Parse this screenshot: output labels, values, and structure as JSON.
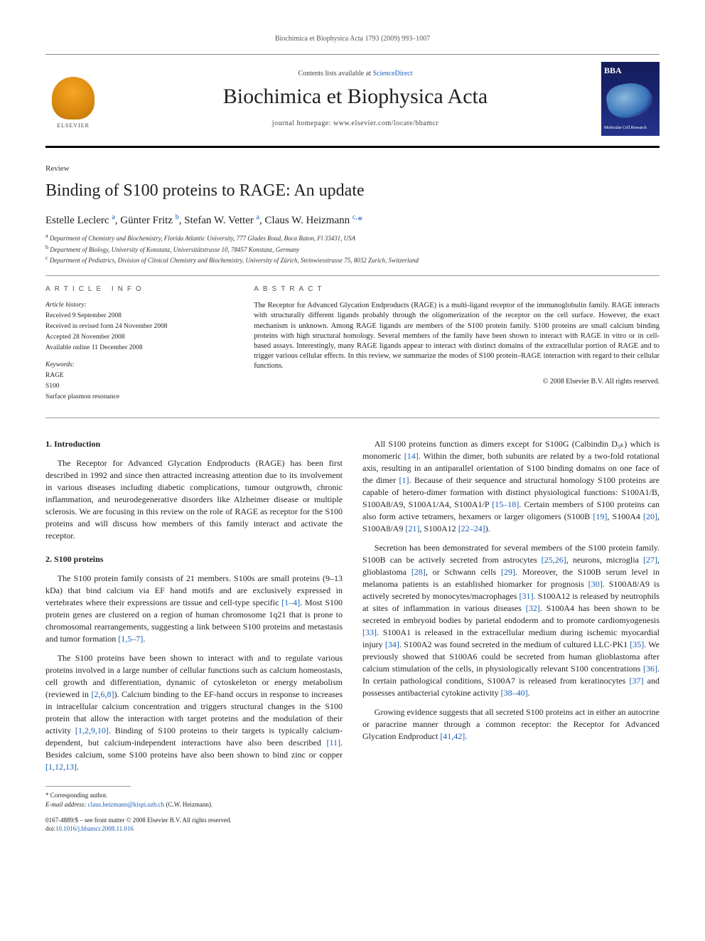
{
  "running_head": "Biochimica et Biophysica Acta 1793 (2009) 993–1007",
  "masthead": {
    "contents_prefix": "Contents lists available at ",
    "contents_link": "ScienceDirect",
    "journal_title": "Biochimica et Biophysica Acta",
    "homepage_prefix": "journal homepage: ",
    "homepage_url": "www.elsevier.com/locate/bbamcr",
    "publisher_label": "ELSEVIER",
    "cover_abbrev": "BBA",
    "cover_subtitle": "Molecular Cell Research"
  },
  "article": {
    "type": "Review",
    "title": "Binding of S100 proteins to RAGE: An update",
    "authors_html": "Estelle Leclerc <sup>a</sup>, Günter Fritz <sup>b</sup>, Stefan W. Vetter <sup>a</sup>, Claus W. Heizmann <sup>c,</sup><span class='corr'>*</span>",
    "affiliations": [
      "Department of Chemistry and Biochemistry, Florida Atlantic University, 777 Glades Road, Boca Raton, Fl 33431, USA",
      "Department of Biology, University of Konstanz, Universitätstrasse 10, 78457 Konstanz, Germany",
      "Department of Pediatrics, Division of Clinical Chemistry and Biochemistry, University of Zürich, Steinwiesstrasse 75, 8032 Zurich, Switzerland"
    ],
    "aff_markers": [
      "a",
      "b",
      "c"
    ]
  },
  "info": {
    "heading": "ARTICLE INFO",
    "history_label": "Article history:",
    "history": [
      "Received 9 September 2008",
      "Received in revised form 24 November 2008",
      "Accepted 28 November 2008",
      "Available online 11 December 2008"
    ],
    "keywords_label": "Keywords:",
    "keywords": [
      "RAGE",
      "S100",
      "Surface plasmon resonance"
    ]
  },
  "abstract": {
    "heading": "ABSTRACT",
    "text": "The Receptor for Advanced Glycation Endproducts (RAGE) is a multi-ligand receptor of the immunoglobulin family. RAGE interacts with structurally different ligands probably through the oligomerization of the receptor on the cell surface. However, the exact mechanism is unknown. Among RAGE ligands are members of the S100 protein family. S100 proteins are small calcium binding proteins with high structural homology. Several members of the family have been shown to interact with RAGE in vitro or in cell-based assays. Interestingly, many RAGE ligands appear to interact with distinct domains of the extracellular portion of RAGE and to trigger various cellular effects. In this review, we summarize the modes of S100 protein–RAGE interaction with regard to their cellular functions.",
    "copyright": "© 2008 Elsevier B.V. All rights reserved."
  },
  "body": {
    "h_intro": "1. Introduction",
    "p_intro": "The Receptor for Advanced Glycation Endproducts (RAGE) has been first described in 1992 and since then attracted increasing attention due to its involvement in various diseases including diabetic complications, tumour outgrowth, chronic inflammation, and neurodegenerative disorders like Alzheimer disease or multiple sclerosis. We are focusing in this review on the role of RAGE as receptor for the S100 proteins and will discuss how members of this family interact and activate the receptor.",
    "h_s100": "2. S100 proteins",
    "p_s100_1a": "The S100 protein family consists of 21 members. S100s are small proteins (9–13 kDa) that bind calcium via EF hand motifs and are exclusively expressed in vertebrates where their expressions are tissue and cell-type specific ",
    "p_s100_1_ref1": "[1–4]",
    "p_s100_1b": ". Most S100 protein genes are clustered on a region of human chromosome 1q21 that is prone to chromosomal rearrangements, suggesting a link between S100 proteins and metastasis and tumor formation ",
    "p_s100_1_ref2": "[1,5–7]",
    "p_s100_1c": ".",
    "p_s100_2a": "The S100 proteins have been shown to interact with and to regulate various proteins involved in a large number of cellular functions such as calcium homeostasis, cell growth and differentiation, dynamic of cytoskeleton or energy metabolism (reviewed in ",
    "p_s100_2_ref1": "[2,6,8]",
    "p_s100_2b": "). Calcium binding to the EF-hand occurs in response to increases in intracellular calcium concentration and triggers structural changes in the S100 protein that allow the interaction with target proteins and the modulation of their activity ",
    "p_s100_2_ref2": "[1,2,9,10]",
    "p_s100_2c": ". Binding of S100 proteins to their targets is typically calcium-dependent, but calcium-independent interactions have also been described ",
    "p_s100_2_ref3": "[11]",
    "p_s100_2d": ". Besides calcium, some S100 proteins have also been shown to bind zinc or copper ",
    "p_s100_2_ref4": "[1,12,13]",
    "p_s100_2e": ".",
    "p_dimer_a": "All S100 proteins function as dimers except for S100G (Calbindin D₉ₖ) which is monomeric ",
    "p_dimer_ref1": "[14]",
    "p_dimer_b": ". Within the dimer, both subunits are related by a two-fold rotational axis, resulting in an antiparallel orientation of S100 binding domains on one face of the dimer ",
    "p_dimer_ref2": "[1]",
    "p_dimer_c": ". Because of their sequence and structural homology S100 proteins are capable of hetero-dimer formation with distinct physiological functions: S100A1/B, S100A8/A9, S100A1/A4, S100A1/P ",
    "p_dimer_ref3": "[15–18]",
    "p_dimer_d": ". Certain members of S100 proteins can also form active tetramers, hexamers or larger oligomers (S100B ",
    "p_dimer_ref4": "[19]",
    "p_dimer_e": ", S100A4 ",
    "p_dimer_ref5": "[20]",
    "p_dimer_f": ", S100A8/A9 ",
    "p_dimer_ref6": "[21]",
    "p_dimer_g": ", S100A12 ",
    "p_dimer_ref7": "[22–24]",
    "p_dimer_h": ").",
    "p_secr_a": "Secretion has been demonstrated for several members of the S100 protein family. S100B can be actively secreted from astrocytes ",
    "p_secr_ref1": "[25,26]",
    "p_secr_b": ", neurons, microglia ",
    "p_secr_ref2": "[27]",
    "p_secr_c": ", glioblastoma ",
    "p_secr_ref3": "[28]",
    "p_secr_d": ", or Schwann cells ",
    "p_secr_ref4": "[29]",
    "p_secr_e": ". Moreover, the S100B serum level in melanoma patients is an established biomarker for prognosis ",
    "p_secr_ref5": "[30]",
    "p_secr_f": ". S100A8/A9 is actively secreted by monocytes/macrophages ",
    "p_secr_ref6": "[31]",
    "p_secr_g": ". S100A12 is released by neutrophils at sites of inflammation in various diseases ",
    "p_secr_ref7": "[32]",
    "p_secr_h": ". S100A4 has been shown to be secreted in embryoid bodies by parietal endoderm and to promote cardiomyogenesis ",
    "p_secr_ref8": "[33]",
    "p_secr_i": ". S100A1 is released in the extracellular medium during ischemic myocardial injury ",
    "p_secr_ref9": "[34]",
    "p_secr_j": ". S100A2 was found secreted in the medium of cultured LLC-PK1 ",
    "p_secr_ref10": "[35]",
    "p_secr_k": ". We previously showed that S100A6 could be secreted from human glioblastoma after calcium stimulation of the cells, in physiologically relevant S100 concentrations ",
    "p_secr_ref11": "[36]",
    "p_secr_l": ". In certain pathological conditions, S100A7 is released from keratinocytes ",
    "p_secr_ref12": "[37]",
    "p_secr_m": " and possesses antibacterial cytokine activity ",
    "p_secr_ref13": "[38–40]",
    "p_secr_n": ".",
    "p_grow_a": "Growing evidence suggests that all secreted S100 proteins act in either an autocrine or paracrine manner through a common receptor: the Receptor for Advanced Glycation Endproduct ",
    "p_grow_ref1": "[41,42]",
    "p_grow_b": "."
  },
  "footnotes": {
    "corr_label": "* Corresponding author.",
    "email_label": "E-mail address:",
    "email": "claus.heizmann@kispi.uzh.ch",
    "email_person": "(C.W. Heizmann)."
  },
  "footer": {
    "issn_line": "0167-4889/$ – see front matter © 2008 Elsevier B.V. All rights reserved.",
    "doi_prefix": "doi:",
    "doi": "10.1016/j.bbamcr.2008.11.016"
  },
  "colors": {
    "link": "#1a5fb4",
    "text": "#222222",
    "rule": "#000000"
  }
}
